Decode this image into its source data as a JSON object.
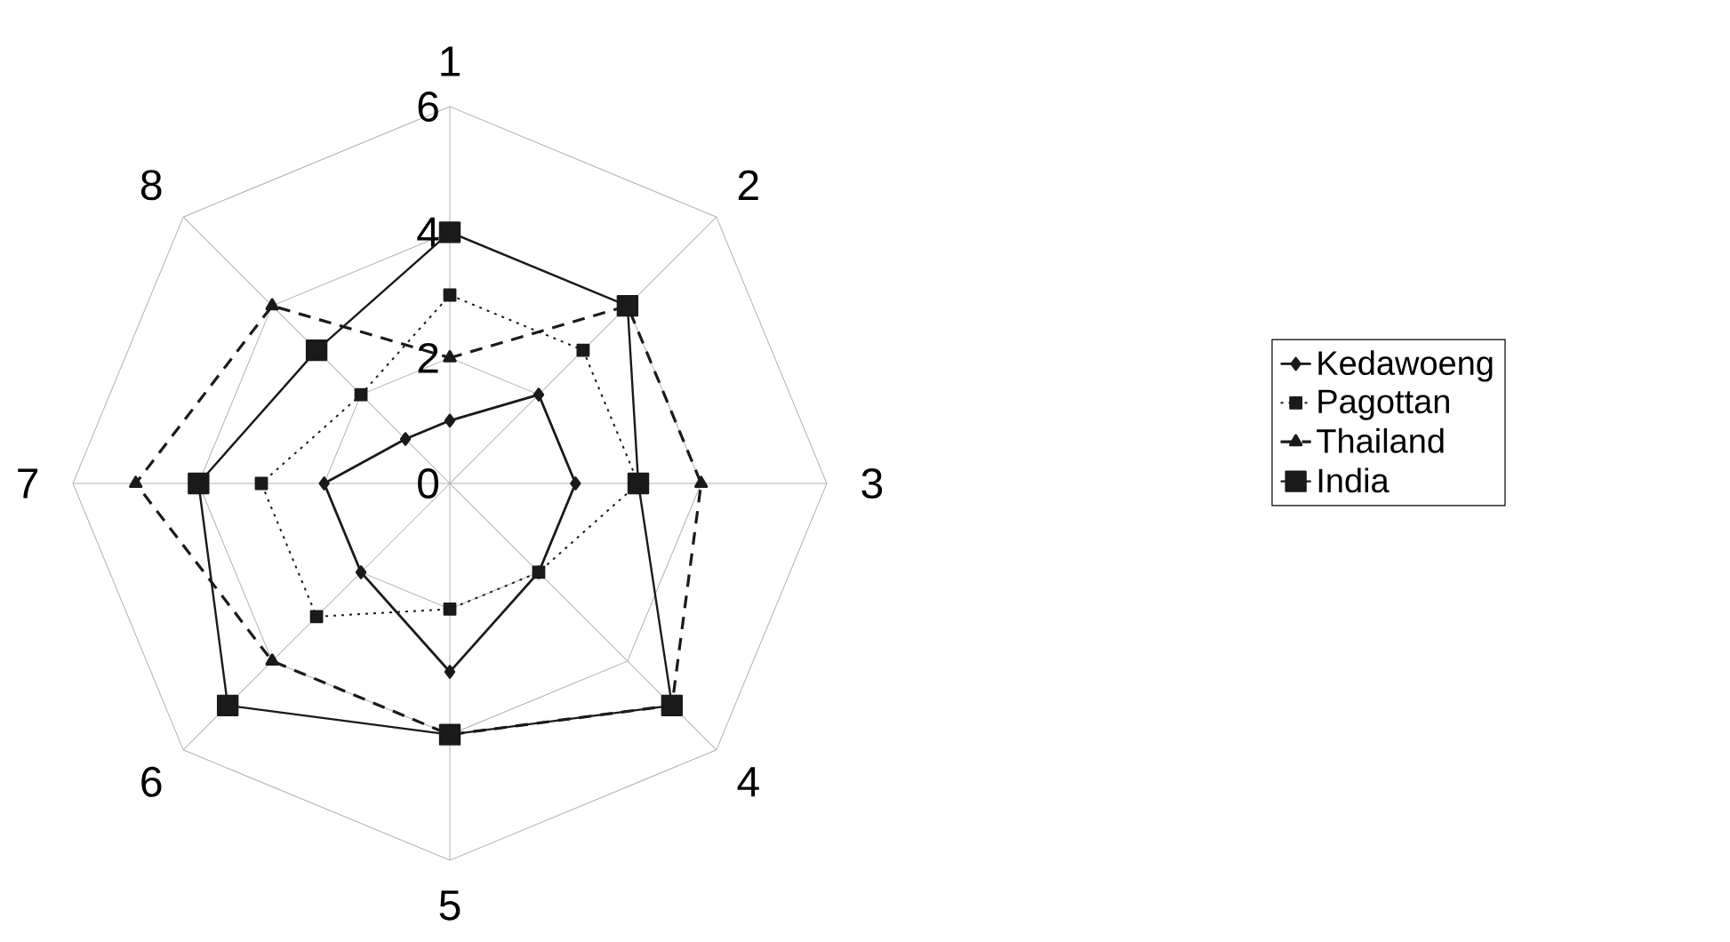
{
  "chart_data": {
    "type": "radar",
    "categories": [
      "1",
      "2",
      "3",
      "4",
      "5",
      "6",
      "7",
      "8"
    ],
    "ylim": [
      0,
      6
    ],
    "yticks": [
      0,
      2,
      4,
      6
    ],
    "grid": true,
    "legend": "right",
    "series": [
      {
        "name": "Kedawoeng",
        "color": "#1a1a1a",
        "marker": "diamond",
        "line_style": "solid",
        "values": [
          1,
          2,
          2,
          2,
          3,
          2,
          2,
          1
        ]
      },
      {
        "name": "Pagottan",
        "color": "#1a1a1a",
        "marker": "square",
        "line_style": "dotted",
        "values": [
          3,
          3,
          3,
          2,
          2,
          3,
          3,
          2
        ]
      },
      {
        "name": "Thailand",
        "color": "#1a1a1a",
        "marker": "triangle",
        "line_style": "dashed",
        "values": [
          2,
          4,
          4,
          5,
          4,
          4,
          5,
          4
        ]
      },
      {
        "name": "India",
        "color": "#1a1a1a",
        "marker": "square",
        "line_style": "solid",
        "values": [
          4,
          4,
          3,
          5,
          4,
          5,
          4,
          3
        ]
      }
    ]
  }
}
